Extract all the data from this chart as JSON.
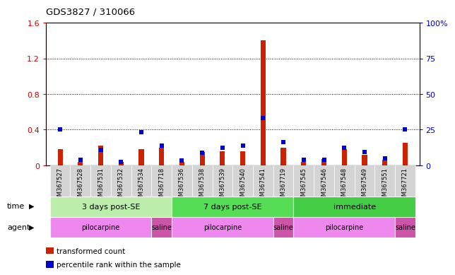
{
  "title": "GDS3827 / 310066",
  "samples": [
    "GSM367527",
    "GSM367528",
    "GSM367531",
    "GSM367532",
    "GSM367534",
    "GSM367718",
    "GSM367536",
    "GSM367538",
    "GSM367539",
    "GSM367540",
    "GSM367541",
    "GSM367719",
    "GSM367545",
    "GSM367546",
    "GSM367548",
    "GSM367549",
    "GSM367551",
    "GSM367721"
  ],
  "transformed_count": [
    0.18,
    0.035,
    0.22,
    0.035,
    0.18,
    0.2,
    0.035,
    0.15,
    0.16,
    0.16,
    1.4,
    0.2,
    0.04,
    0.07,
    0.18,
    0.12,
    0.065,
    0.25
  ],
  "percentile_rank_left": [
    0.4,
    0.065,
    0.17,
    0.04,
    0.37,
    0.22,
    0.055,
    0.14,
    0.2,
    0.22,
    0.53,
    0.26,
    0.065,
    0.065,
    0.2,
    0.15,
    0.075,
    0.4
  ],
  "time_groups": [
    {
      "label": "3 days post-SE",
      "start": 0,
      "end": 5,
      "color": "#bbeeaa"
    },
    {
      "label": "7 days post-SE",
      "start": 6,
      "end": 11,
      "color": "#55dd55"
    },
    {
      "label": "immediate",
      "start": 12,
      "end": 17,
      "color": "#44cc44"
    }
  ],
  "agent_groups": [
    {
      "label": "pilocarpine",
      "start": 0,
      "end": 4,
      "color": "#ee88ee"
    },
    {
      "label": "saline",
      "start": 5,
      "end": 5,
      "color": "#cc55aa"
    },
    {
      "label": "pilocarpine",
      "start": 6,
      "end": 10,
      "color": "#ee88ee"
    },
    {
      "label": "saline",
      "start": 11,
      "end": 11,
      "color": "#cc55aa"
    },
    {
      "label": "pilocarpine",
      "start": 12,
      "end": 16,
      "color": "#ee88ee"
    },
    {
      "label": "saline",
      "start": 17,
      "end": 17,
      "color": "#cc55aa"
    }
  ],
  "bar_color_red": "#cc2200",
  "marker_color_blue": "#0000cc",
  "ylim_left": [
    0,
    1.6
  ],
  "ylim_right": [
    0,
    100
  ],
  "yticks_left": [
    0,
    0.4,
    0.8,
    1.2,
    1.6
  ],
  "yticks_right": [
    0,
    25,
    50,
    75,
    100
  ],
  "ytick_labels_left": [
    "0",
    "0.4",
    "0.8",
    "1.2",
    "1.6"
  ],
  "ytick_labels_right": [
    "0",
    "25",
    "50",
    "75",
    "100%"
  ],
  "legend_items": [
    "transformed count",
    "percentile rank within the sample"
  ],
  "legend_colors": [
    "#cc2200",
    "#0000cc"
  ],
  "time_label": "time",
  "agent_label": "agent",
  "n_samples": 18,
  "gray_bg": "#d4d4d4",
  "saline_color": "#cc55aa",
  "pilo_color": "#ee88ee"
}
